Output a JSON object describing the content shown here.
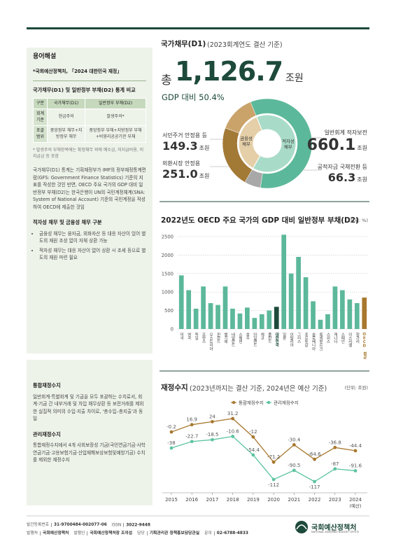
{
  "sidebar": {
    "header": "용어해설",
    "source": "*국회예산정책처, 「2024 대한민국 재정」",
    "table_title": "국가채무(D1) 및 일반정부 부채(D2) 통계 비교",
    "table": {
      "header": [
        "구분",
        "국가채무(D1)",
        "일반정부 부채(D2)"
      ],
      "rows": [
        [
          "회계기준",
          "현금주의",
          "발생주의*"
        ],
        [
          "포괄범위",
          "중앙정부 채무+지방정부 채무",
          "중앙정부 부채+지방정부 부채+비영리공공기관 부채"
        ]
      ]
    },
    "footnote": "* 발생주의 부채항목에는 확정채무 외에 예수금, 미지급비용, 미지급금 등 포함",
    "paragraph": "국가채무(D1) 통계는 기획재정부가 IMF의 정부재정통계편람(GFS: Government Finance Statistics) 기준의 지표를 작성한 것인 반면, OECD 주요 국가의 GDP 대비 일반정부 부채(D2)는 한국은행이 UN의 국민계정체계(SNA: System of National Account) 기준의 국민계정을 작성하여 OECD에 제출한 것임",
    "section2_title": "적자성 채무 및 금융성 채무 구분",
    "bullets": [
      "금융성 채무는 융자금, 외화자산 등 대응 자산이 있어 별도의 재원 조성 없이 자체 상환 가능",
      "적자성 채무는 대응 자산이 없어 상환 시 조세 등으로 별도의 재원 마련 필요"
    ],
    "section3_title": "통합재정수지",
    "section3_text": "일반회계·특별회계 및 기금을 모두 포괄하는 수치로서, 회계·기금 간 내부거래 및 차입 채무상환 등 보전거래를 제외한 실질적 의미의 수입·지출 차이로, '총수입–총지출'과 동일",
    "section4_title": "관리재정수지",
    "section4_text": "통합재정수지에서 4개 사회보장성 기금(국민연금기금·사학연금기금·고용보험기금·산업재해보상보험및예방기금) 수치를 제외한 재정수지"
  },
  "chart_data": [
    {
      "type": "donut",
      "title": "국가채무(D1)",
      "subtitle": "(2023회계연도 결산 기준)",
      "total_prefix": "총",
      "total": {
        "value": 1126.7,
        "label": "1,126.7"
      },
      "unit": "조원",
      "ratio_text": "GDP 대비 50.4%",
      "categories": [
        "일반회계 적자보전",
        "공적자금 국채전환 등",
        "외환시장 안정용",
        "서민주거 안정용 등"
      ],
      "values": [
        660.1,
        66.3,
        251.0,
        149.3
      ],
      "value_labels": [
        "660.1",
        "66.3",
        "251.0",
        "149.3"
      ],
      "colors": [
        "#5cb89a",
        "#a8a8a8",
        "#a27a36",
        "#caa36b"
      ],
      "groups": [
        {
          "name": "적자성 채무",
          "color": "#a9dcc8"
        },
        {
          "name": "금융성 채무",
          "color": "#e5cfa8"
        }
      ]
    },
    {
      "type": "bar",
      "title": "2022년도 OECD 주요 국가의 GDP 대비 일반정부 부채(D2)",
      "unit_note": "(단위: %)",
      "categories": [
        "미국",
        "영국",
        "독일",
        "프랑스",
        "오스트리아",
        "핀란드",
        "벨기에",
        "네덜란드",
        "스웨덴",
        "호주",
        "아일랜드",
        "체코",
        "폴란드",
        "대한민국",
        "일본",
        "이탈리아",
        "그리스",
        "포르투갈",
        "슬로베니아",
        "룩셈부르크",
        "스위스",
        "캐나다",
        "스페인",
        "이스라엘",
        "헝가리",
        "OECD 평균"
      ],
      "values": [
        1450,
        1050,
        550,
        1150,
        700,
        650,
        1150,
        550,
        420,
        580,
        300,
        400,
        500,
        600,
        2550,
        1500,
        1950,
        1400,
        750,
        250,
        400,
        1150,
        1050,
        800,
        700,
        850
      ],
      "colors": [
        "#5cb89a",
        "#5cb89a",
        "#5cb89a",
        "#5cb89a",
        "#5cb89a",
        "#5cb89a",
        "#5cb89a",
        "#5cb89a",
        "#5cb89a",
        "#5cb89a",
        "#5cb89a",
        "#5cb89a",
        "#5cb89a",
        "#1d4a3a",
        "#5cb89a",
        "#5cb89a",
        "#5cb89a",
        "#5cb89a",
        "#5cb89a",
        "#5cb89a",
        "#5cb89a",
        "#5cb89a",
        "#5cb89a",
        "#5cb89a",
        "#5cb89a",
        "#a8782f"
      ],
      "ylim": [
        0,
        2650
      ],
      "yticks": [
        0,
        500,
        1000,
        1500,
        2000,
        2500
      ],
      "grid": true
    },
    {
      "type": "line",
      "title": "재정수지",
      "subtitle": "(2023년까지는 결산 기준, 2024년은 예산 기준)",
      "unit_note": "(단위: 조원)",
      "categories": [
        "2015",
        "2016",
        "2017",
        "2018",
        "2019",
        "2020",
        "2021",
        "2022",
        "2023",
        "2024"
      ],
      "last_category_note": "(예산)",
      "series": [
        {
          "name": "통합재정수지",
          "color": "#a8782f",
          "values": [
            -0.2,
            16.9,
            24,
            31.2,
            -12,
            -71.2,
            -30.4,
            -64.6,
            -36.8,
            -44.4
          ]
        },
        {
          "name": "관리재정수지",
          "color": "#5cc3a3",
          "values": [
            -38,
            -22.7,
            -18.5,
            -10.6,
            -54.4,
            -112,
            -90.5,
            -117,
            -87,
            -91.6
          ]
        }
      ]
    }
  ],
  "footer": {
    "row1": [
      {
        "label": "발간등록번호",
        "value": "31-9700484-002077-06"
      },
      {
        "label": "ISSN",
        "value": "3022-9448"
      }
    ],
    "row2": [
      {
        "label": "발행처",
        "value": "국회예산정책처"
      },
      {
        "label": "발행인",
        "value": "국회예산정책처장 조의섭"
      },
      {
        "label": "담당",
        "value": "기획관리관 정책홍보담당관실"
      },
      {
        "label": "문의",
        "value": "02-6788-4833"
      }
    ],
    "logo_name": "국회예산정책처",
    "logo_en": "NATIONAL ASSEMBLY BUDGET OFFICE"
  }
}
